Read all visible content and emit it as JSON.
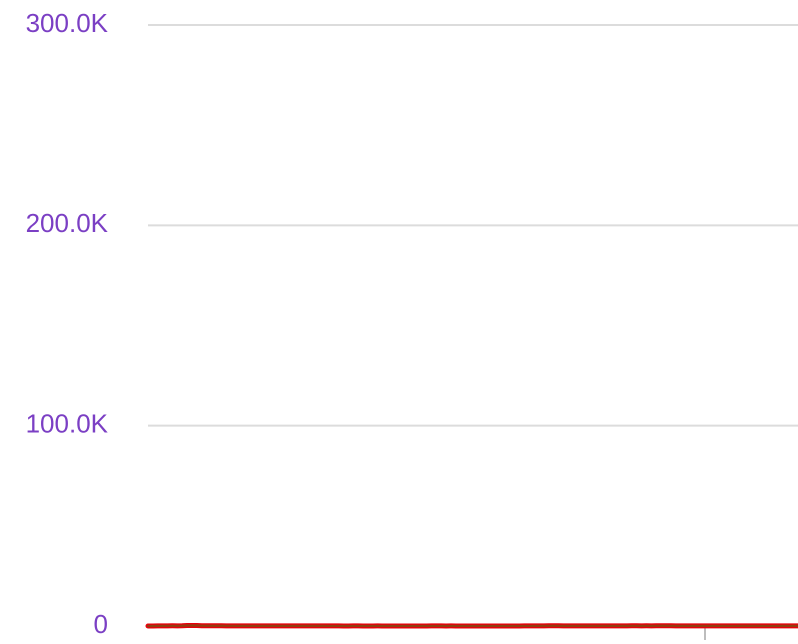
{
  "chart_data": {
    "type": "line",
    "values": [
      0,
      10,
      63,
      65,
      85,
      93,
      85,
      113,
      262,
      265,
      238,
      148,
      125,
      118,
      130,
      115,
      88,
      83,
      73,
      82,
      75,
      79,
      74,
      79,
      69,
      68,
      72,
      55,
      53,
      58,
      53,
      50,
      48,
      55,
      50,
      52,
      43,
      42,
      39,
      37,
      29,
      28,
      35,
      33,
      25,
      25,
      28,
      33,
      25,
      23,
      25,
      28,
      23,
      24,
      24,
      25,
      22,
      24,
      35,
      33,
      33,
      30,
      33,
      27,
      23,
      22,
      20,
      17,
      20,
      20,
      23,
      22,
      23,
      30,
      30,
      27,
      29,
      33,
      38,
      50,
      78,
      85,
      105,
      113,
      103,
      70,
      73,
      65,
      64,
      53,
      55,
      68,
      64,
      50,
      48,
      45,
      43,
      50,
      63,
      95,
      93,
      80,
      93,
      70,
      103,
      115,
      129,
      103,
      83,
      78,
      68,
      64,
      69,
      64,
      63,
      53,
      50,
      53,
      43,
      40,
      39,
      48,
      55,
      65,
      79,
      53,
      39,
      40,
      38,
      50,
      68,
      70,
      74,
      58
    ],
    "color": "#e8000b",
    "inner_color": "#7a4e12",
    "ylim": [
      0,
      300000
    ],
    "yticks": [
      0,
      {
        "value": 100000,
        "label": "100.0K"
      },
      {
        "value": 200000,
        "label": "200.0K"
      },
      {
        "value": 300000,
        "label": "300.0K"
      }
    ],
    "grid": true
  }
}
